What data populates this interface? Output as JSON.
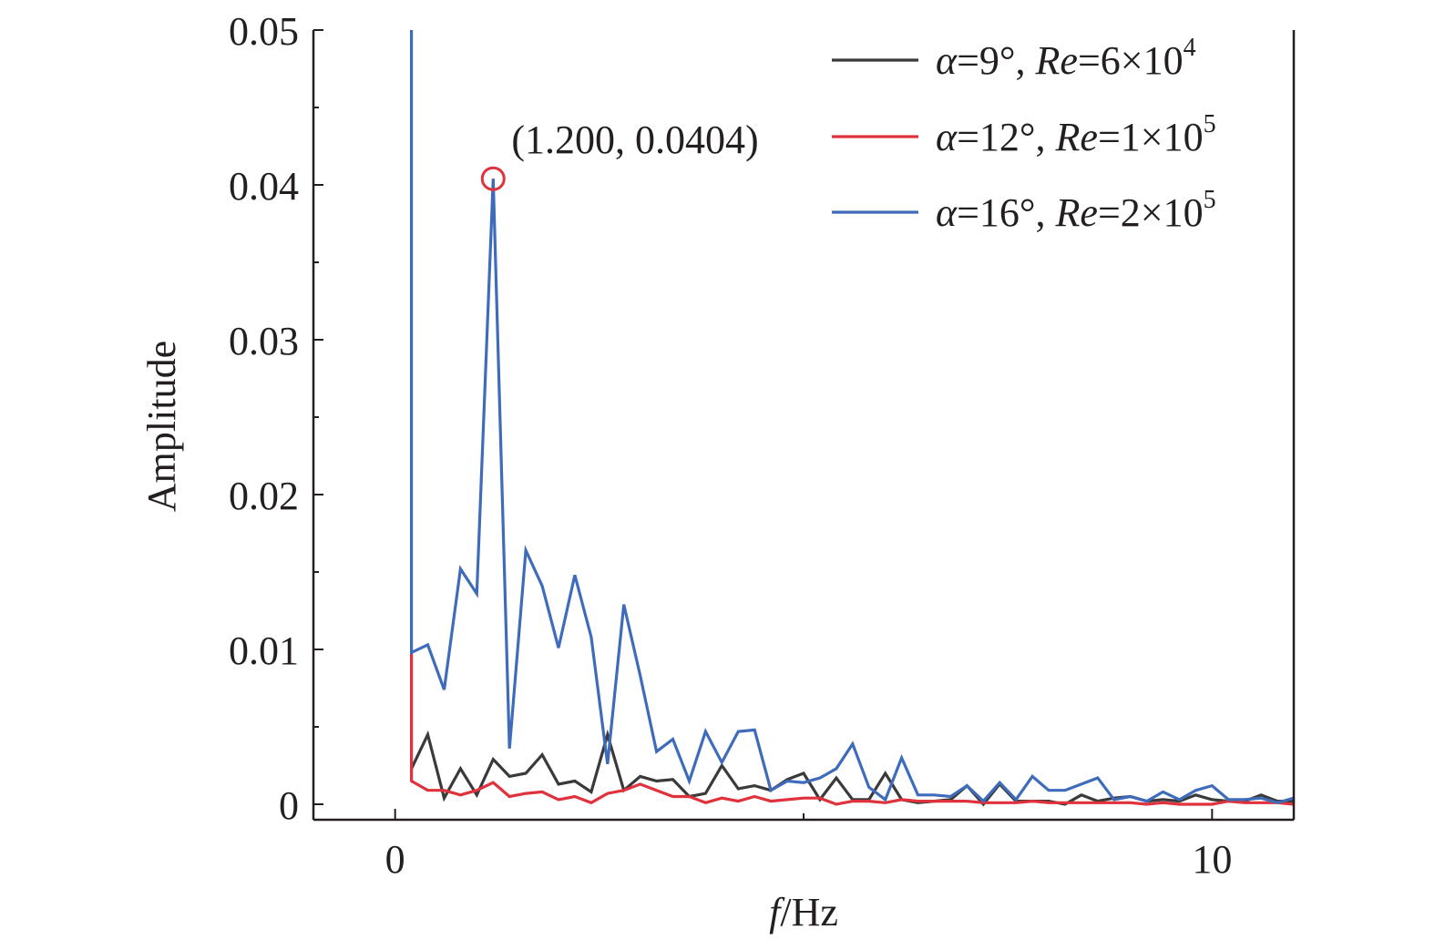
{
  "chart_data": {
    "type": "line",
    "title": "",
    "xlabel": {
      "var": "f",
      "unit": "/Hz"
    },
    "ylabel": "Amplitude",
    "xlim": [
      -1.0,
      11.0
    ],
    "ylim": [
      -0.001,
      0.05
    ],
    "x_ticks": [
      0,
      10
    ],
    "x_tick_labels": [
      "0",
      "10"
    ],
    "x_minor_ticks": [
      5
    ],
    "y_ticks": [
      0,
      0.01,
      0.02,
      0.03,
      0.04,
      0.05
    ],
    "y_tick_labels": [
      "0",
      "0.01",
      "0.02",
      "0.03",
      "0.04",
      "0.05"
    ],
    "grid": false,
    "legend_position": "top-right",
    "series": [
      {
        "legend": {
          "alpha": "α",
          "angle": "=9°,",
          "re": "Re",
          "value": "=6×10",
          "exp": "4"
        },
        "color": "#3a3a3a",
        "x": [
          0.2,
          0.4,
          0.6,
          0.8,
          1.0,
          1.2,
          1.4,
          1.6,
          1.8,
          2.0,
          2.2,
          2.4,
          2.6,
          2.8,
          3.0,
          3.2,
          3.4,
          3.6,
          3.8,
          4.0,
          4.2,
          4.4,
          4.6,
          4.8,
          5.0,
          5.2,
          5.4,
          5.6,
          5.8,
          6.0,
          6.2,
          6.4,
          6.6,
          6.8,
          7.0,
          7.2,
          7.4,
          7.6,
          7.8,
          8.0,
          8.2,
          8.4,
          8.6,
          8.8,
          9.0,
          9.2,
          9.4,
          9.6,
          9.8,
          10.0,
          10.2,
          10.4,
          10.6,
          10.8,
          11.0
        ],
        "y": [
          0.0023,
          0.0045,
          0.0004,
          0.0023,
          0.0006,
          0.0029,
          0.0018,
          0.002,
          0.0032,
          0.0013,
          0.0015,
          0.0008,
          0.0045,
          0.0009,
          0.0018,
          0.0015,
          0.0016,
          0.0005,
          0.0007,
          0.0025,
          0.001,
          0.0012,
          0.0009,
          0.0016,
          0.002,
          0.0003,
          0.0017,
          0.0003,
          0.0003,
          0.002,
          0.0003,
          0.0001,
          0.0002,
          0.0003,
          0.0012,
          0.0,
          0.0013,
          0.0002,
          0.0002,
          0.0002,
          0.0,
          0.0006,
          0.0002,
          0.0004,
          0.0005,
          0.0002,
          0.0003,
          0.0002,
          0.0006,
          0.0003,
          0.0002,
          0.0002,
          0.0006,
          0.0002,
          0.0002
        ]
      },
      {
        "legend": {
          "alpha": "α",
          "angle": "=12°,",
          "re": "Re",
          "value": "=1×10",
          "exp": "5"
        },
        "color": "#e0323c",
        "x": [
          0.2,
          0.2,
          0.4,
          0.6,
          0.8,
          1.0,
          1.2,
          1.4,
          1.6,
          1.8,
          2.0,
          2.2,
          2.4,
          2.6,
          2.8,
          3.0,
          3.2,
          3.4,
          3.6,
          3.8,
          4.0,
          4.2,
          4.4,
          4.6,
          4.8,
          5.0,
          5.2,
          5.4,
          5.6,
          5.8,
          6.0,
          6.2,
          6.4,
          6.6,
          6.8,
          7.0,
          7.2,
          7.4,
          7.6,
          7.8,
          8.0,
          8.2,
          8.4,
          8.6,
          8.8,
          9.0,
          9.2,
          9.4,
          9.6,
          9.8,
          10.0,
          10.2,
          10.4,
          10.6,
          10.8,
          11.0
        ],
        "y": [
          0.0099,
          0.0015,
          0.0009,
          0.0009,
          0.0006,
          0.0009,
          0.0014,
          0.0005,
          0.0007,
          0.0008,
          0.0003,
          0.0005,
          0.0001,
          0.0007,
          0.0009,
          0.0013,
          0.0009,
          0.0005,
          0.0005,
          0.0001,
          0.0004,
          0.0002,
          0.0005,
          0.0002,
          0.0003,
          0.0004,
          0.0004,
          0.0,
          0.0002,
          0.0002,
          0.0001,
          0.0003,
          0.0002,
          0.0002,
          0.0002,
          0.0002,
          0.0001,
          0.0001,
          0.0001,
          0.0002,
          0.0001,
          0.0001,
          0.0001,
          0.0001,
          0.0001,
          0.0001,
          0.0,
          0.0001,
          0.0,
          0.0,
          0.0,
          0.0002,
          0.0001,
          0.0001,
          0.0001,
          0.0
        ]
      },
      {
        "legend": {
          "alpha": "α",
          "angle": "=16°,",
          "re": "Re",
          "value": "=2×10",
          "exp": "5"
        },
        "color": "#3f6cba",
        "x": [
          0.2,
          0.2,
          0.4,
          0.6,
          0.8,
          1.0,
          1.2,
          1.4,
          1.6,
          1.8,
          2.0,
          2.2,
          2.4,
          2.6,
          2.8,
          3.0,
          3.2,
          3.4,
          3.6,
          3.8,
          4.0,
          4.2,
          4.4,
          4.6,
          4.8,
          5.0,
          5.2,
          5.4,
          5.6,
          5.8,
          6.0,
          6.2,
          6.4,
          6.6,
          6.8,
          7.0,
          7.2,
          7.4,
          7.6,
          7.8,
          8.0,
          8.2,
          8.4,
          8.6,
          8.8,
          9.0,
          9.2,
          9.4,
          9.6,
          9.8,
          10.0,
          10.2,
          10.4,
          10.6,
          10.8,
          11.0
        ],
        "y": [
          0.05,
          0.0098,
          0.0103,
          0.0074,
          0.0152,
          0.0136,
          0.0404,
          0.0036,
          0.0164,
          0.0141,
          0.0101,
          0.0148,
          0.0108,
          0.0026,
          0.0129,
          0.0083,
          0.0034,
          0.0042,
          0.0015,
          0.0047,
          0.0027,
          0.0047,
          0.0048,
          0.0009,
          0.0015,
          0.0014,
          0.0017,
          0.0023,
          0.0039,
          0.0011,
          0.0003,
          0.003,
          0.0006,
          0.0006,
          0.0005,
          0.0012,
          0.0002,
          0.0014,
          0.0003,
          0.0018,
          0.0009,
          0.0009,
          0.0013,
          0.0017,
          0.0003,
          0.0005,
          0.0002,
          0.0008,
          0.0003,
          0.0009,
          0.0012,
          0.0003,
          0.0003,
          0.0004,
          0.0001,
          0.0004
        ]
      }
    ],
    "annotation": {
      "label": "(1.200, 0.0404)",
      "x": 1.2,
      "y": 0.0404,
      "marker": "open-circle",
      "color": "#e0323c"
    }
  }
}
